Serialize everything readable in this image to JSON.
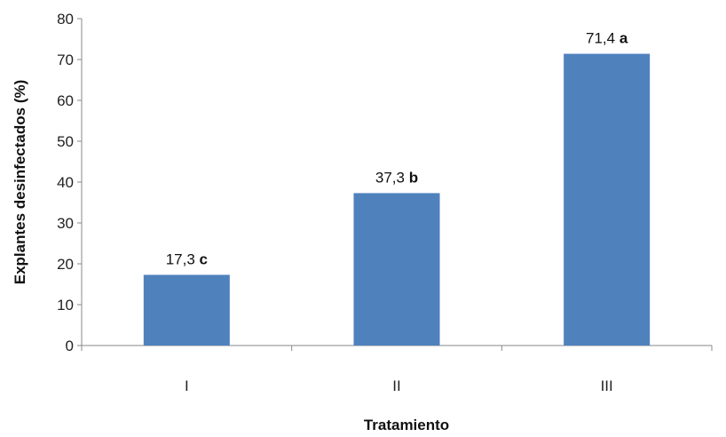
{
  "chart_data": {
    "type": "bar",
    "title": "",
    "xlabel": "Tratamiento",
    "ylabel": "Explantes desinfectados  (%)",
    "categories": [
      "I",
      "II",
      "III"
    ],
    "values": [
      17.3,
      37.3,
      71.4
    ],
    "data_labels": [
      {
        "value": "17,3",
        "letter": "c"
      },
      {
        "value": "37,3",
        "letter": "b"
      },
      {
        "value": "71,4",
        "letter": "a"
      }
    ],
    "ylim": [
      0,
      80
    ],
    "yticks": [
      "0",
      "10",
      "20",
      "30",
      "40",
      "50",
      "60",
      "70",
      "80"
    ],
    "grid": false,
    "legend": "none",
    "bar_color": "#4f81bd"
  }
}
